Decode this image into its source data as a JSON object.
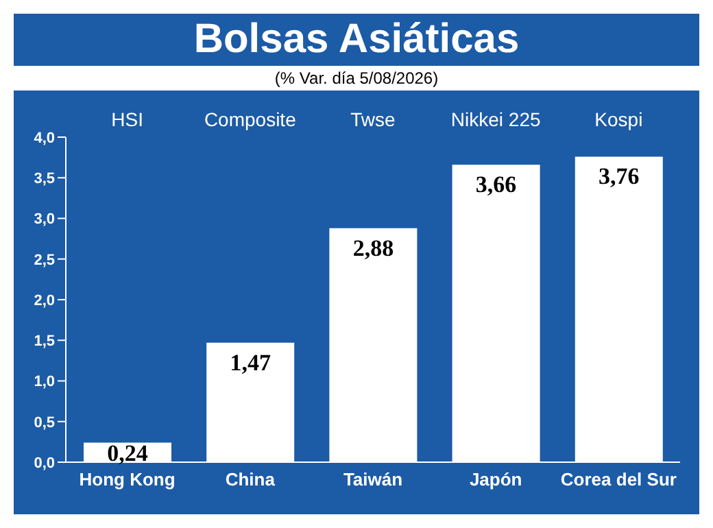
{
  "chart_data": {
    "type": "bar",
    "title": "Bolsas Asiáticas",
    "subtitle": "(% Var. día 5/08/2026)",
    "categories": [
      "Hong Kong",
      "China",
      "Taiwán",
      "Japón",
      "Corea del Sur"
    ],
    "values": [
      0.24,
      1.47,
      2.88,
      3.66,
      3.76
    ],
    "color": "#ffffff",
    "value_labels": [
      "0,24",
      "1,47",
      "2,88",
      "3,66",
      "3,76"
    ],
    "ylim": [
      0,
      4
    ],
    "yticks": [
      {
        "value": 0,
        "label": "0,0"
      },
      {
        "value": 0.5,
        "label": "0,5"
      },
      {
        "value": 1,
        "label": "1,0"
      },
      {
        "value": 1.5,
        "label": "1,5"
      },
      {
        "value": 2,
        "label": "2,0"
      },
      {
        "value": 2.5,
        "label": "2,5"
      },
      {
        "value": 3,
        "label": "3,0"
      },
      {
        "value": 3.5,
        "label": "3,5"
      },
      {
        "value": 4,
        "label": "4,0"
      }
    ],
    "annotations": [
      "HSI",
      "Composite",
      "Twse",
      "Nikkei 225",
      "Kospi"
    ],
    "grid": false,
    "legend": false
  }
}
